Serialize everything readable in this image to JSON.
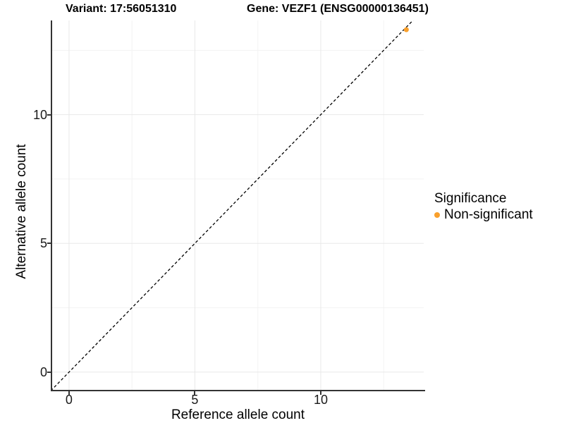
{
  "header": {
    "variant_title": "Variant: 17:56051310",
    "gene_title": "Gene: VEZF1 (ENSG00000136451)"
  },
  "legend": {
    "title": "Significance",
    "items": [
      {
        "label": "Non-significant",
        "color": "#F9A02C",
        "marker": "dot"
      }
    ]
  },
  "chart_data": {
    "type": "scatter",
    "title": "Variant: 17:56051310 / Gene: VEZF1 (ENSG00000136451)",
    "xlabel": "Reference allele count",
    "ylabel": "Alternative allele count",
    "xlim": [
      -0.67,
      14.09
    ],
    "ylim": [
      -0.69,
      13.66
    ],
    "x_ticks": [
      0,
      5,
      10
    ],
    "y_ticks": [
      0,
      5,
      10
    ],
    "x_minor_ticks": [
      2.5,
      7.5,
      12.5
    ],
    "y_minor_ticks": [
      2.5,
      7.5,
      12.5
    ],
    "grid": true,
    "legend_position": "right",
    "series": [
      {
        "name": "Non-significant",
        "color": "#F9A02C",
        "points": [
          {
            "x": 13.4,
            "y": 13.3
          }
        ]
      }
    ],
    "reference_line": {
      "type": "identity y=x",
      "style": "dashed",
      "color": "#000000"
    }
  },
  "colors": {
    "background": "#FFFFFF",
    "axis_line": "#333333",
    "grid_major": "#E8E8E8",
    "grid_minor": "#F3F3F3",
    "tick_text": "#1A1A1A",
    "title_text": "#000000"
  }
}
